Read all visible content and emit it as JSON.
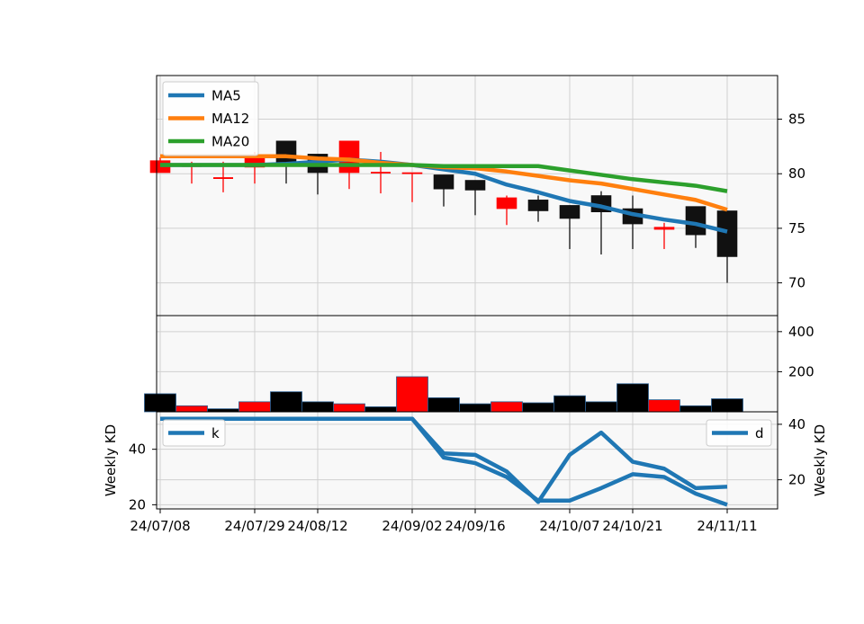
{
  "colors": {
    "up": "#ff0000",
    "down": "#111111",
    "ma5": "#1f77b4",
    "ma12": "#ff7f0e",
    "ma20": "#2ca02c",
    "kd": "#1f77b4",
    "panel_bg": "#f8f8f8",
    "grid": "#d0d0d0"
  },
  "chart_data": [
    {
      "type": "candlestick",
      "title": "",
      "x_tick_labels": [
        "24/07/08",
        "24/07/29",
        "24/08/12",
        "24/09/02",
        "24/09/16",
        "24/10/07",
        "24/10/21",
        "24/11/11"
      ],
      "x_tick_index": [
        0,
        3,
        5,
        8,
        10,
        13,
        15,
        18
      ],
      "ylim": [
        67,
        89
      ],
      "y_ticks": [
        70,
        75,
        80,
        85
      ],
      "y_axis_side": "right",
      "grid": true,
      "candles": [
        {
          "o": 80.1,
          "h": 81.5,
          "l": 80.1,
          "c": 81.2
        },
        {
          "o": 80.7,
          "h": 81.1,
          "l": 79.1,
          "c": 80.7
        },
        {
          "o": 79.6,
          "h": 81.1,
          "l": 78.3,
          "c": 79.6
        },
        {
          "o": 80.6,
          "h": 82.0,
          "l": 79.1,
          "c": 81.7
        },
        {
          "o": 83.0,
          "h": 83.0,
          "l": 79.1,
          "c": 81.0
        },
        {
          "o": 81.8,
          "h": 81.8,
          "l": 78.1,
          "c": 80.1
        },
        {
          "o": 80.1,
          "h": 83.0,
          "l": 78.6,
          "c": 83.0
        },
        {
          "o": 80.1,
          "h": 82.0,
          "l": 78.2,
          "c": 80.1
        },
        {
          "o": 80.0,
          "h": 80.0,
          "l": 77.4,
          "c": 80.1
        },
        {
          "o": 79.9,
          "h": 79.9,
          "l": 77.0,
          "c": 78.6
        },
        {
          "o": 79.4,
          "h": 79.4,
          "l": 76.2,
          "c": 78.5
        },
        {
          "o": 76.8,
          "h": 78.0,
          "l": 75.3,
          "c": 77.8
        },
        {
          "o": 77.6,
          "h": 78.0,
          "l": 75.6,
          "c": 76.6
        },
        {
          "o": 77.1,
          "h": 77.1,
          "l": 73.1,
          "c": 75.9
        },
        {
          "o": 78.0,
          "h": 78.4,
          "l": 72.6,
          "c": 76.5
        },
        {
          "o": 76.8,
          "h": 78.0,
          "l": 73.1,
          "c": 75.4
        },
        {
          "o": 74.9,
          "h": 75.5,
          "l": 73.1,
          "c": 75.1
        },
        {
          "o": 77.0,
          "h": 77.0,
          "l": 73.2,
          "c": 74.4
        },
        {
          "o": 76.6,
          "h": 76.6,
          "l": 70.0,
          "c": 72.4
        }
      ],
      "series": [
        {
          "name": "MA5",
          "values": [
            80.8,
            80.8,
            80.8,
            80.8,
            80.9,
            81.1,
            81.3,
            81.1,
            80.8,
            80.4,
            80.0,
            79.0,
            78.3,
            77.5,
            77.0,
            76.3,
            75.8,
            75.4,
            74.7
          ]
        },
        {
          "name": "MA12",
          "values": [
            81.6,
            81.6,
            81.6,
            81.6,
            81.6,
            81.4,
            81.3,
            81.0,
            80.8,
            80.6,
            80.5,
            80.2,
            79.8,
            79.4,
            79.1,
            78.6,
            78.1,
            77.6,
            76.7
          ]
        },
        {
          "name": "MA20",
          "values": [
            80.8,
            80.8,
            80.8,
            80.8,
            80.8,
            80.8,
            80.8,
            80.8,
            80.8,
            80.7,
            80.7,
            80.7,
            80.7,
            80.3,
            79.9,
            79.5,
            79.2,
            78.9,
            78.4
          ]
        }
      ],
      "legend": "upper-left"
    },
    {
      "type": "bar",
      "title": "",
      "ylim": [
        0,
        480
      ],
      "y_ticks": [
        200,
        400
      ],
      "y_axis_side": "right",
      "values": [
        90,
        30,
        15,
        50,
        100,
        50,
        40,
        25,
        175,
        70,
        40,
        50,
        45,
        80,
        50,
        140,
        60,
        30,
        65
      ],
      "up": [
        false,
        true,
        false,
        true,
        false,
        false,
        true,
        false,
        true,
        false,
        false,
        true,
        false,
        false,
        false,
        false,
        true,
        false,
        false
      ]
    },
    {
      "type": "line",
      "title": "",
      "ylabel_left": "Weekly KD",
      "ylabel_right": "Weekly KD",
      "left_ylim": [
        18.5,
        53.5
      ],
      "left_y_ticks": [
        20,
        40
      ],
      "right_ylim": [
        9.5,
        44.5
      ],
      "right_y_ticks": [
        20,
        40
      ],
      "grid": true,
      "series": [
        {
          "name": "k",
          "axis": "left",
          "values": [
            51,
            51,
            51,
            51,
            51,
            51,
            51,
            51,
            51,
            37,
            35,
            30,
            21.5,
            21.5,
            26,
            31,
            30,
            24,
            20
          ]
        },
        {
          "name": "d",
          "axis": "right",
          "values": [
            42,
            42,
            42,
            42,
            42,
            42,
            42,
            42,
            42,
            29.5,
            29,
            23,
            12,
            29,
            37,
            26.5,
            24,
            17,
            17.5
          ]
        }
      ],
      "legend_left": "upper-left",
      "legend_right": "upper-right"
    }
  ]
}
